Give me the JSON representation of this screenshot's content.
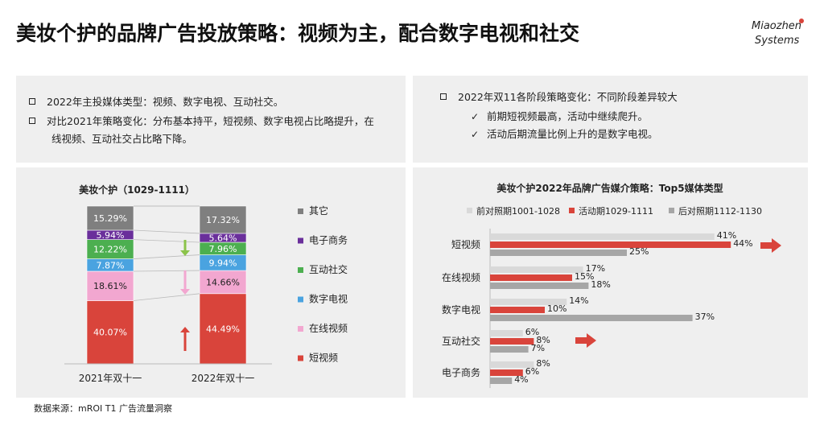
{
  "page": {
    "title": "美妆个护的品牌广告投放策略：视频为主，配合数字电视和社交",
    "logo_line1": "Miaozhen",
    "logo_line2": "Systems",
    "footer": "数据来源：mROI T1 广告流量洞察"
  },
  "left_notes": [
    "2022年主投媒体类型：视频、数字电视、互动社交。",
    "对比2021年策略变化：分布基本持平，短视频、数字电视占比略提升，在",
    "线视频、互动社交占比略下降。"
  ],
  "right_notes": {
    "header": "2022年双11各阶段策略变化：不同阶段差异较大",
    "items": [
      "前期短视频最高，活动中继续爬升。",
      "活动后期流量比例上升的是数字电视。"
    ]
  },
  "colors": {
    "short_video": "#d9443b",
    "online_video": "#f2a7d0",
    "digital_tv": "#4aa3e0",
    "social": "#4caf50",
    "ecommerce": "#6a2f9b",
    "other": "#7f7f7f",
    "pre": "#d9d9d9",
    "during": "#d9443b",
    "post": "#a6a6a6",
    "down_arrow_green": "#8bc34a",
    "down_arrow_pink": "#f2a7d0",
    "up_arrow": "#d9443b"
  },
  "chart_data": [
    {
      "type": "bar",
      "stacked": true,
      "title": "美妆个护（1029-1111）",
      "categories": [
        "2021年双十一",
        "2022年双十一"
      ],
      "series": [
        {
          "name": "短视频",
          "values": [
            40.07,
            44.49
          ],
          "labels": [
            "40.07%",
            "44.49%"
          ]
        },
        {
          "name": "在线视频",
          "values": [
            18.61,
            14.66
          ],
          "labels": [
            "18.61%",
            "14.66%"
          ]
        },
        {
          "name": "数字电视",
          "values": [
            7.87,
            9.94
          ],
          "labels": [
            "7.87%",
            "9.94%"
          ]
        },
        {
          "name": "互动社交",
          "values": [
            12.22,
            7.96
          ],
          "labels": [
            "12.22%",
            "7.96%"
          ]
        },
        {
          "name": "电子商务",
          "values": [
            5.94,
            5.64
          ],
          "labels": [
            "5.94%",
            "5.64%"
          ]
        },
        {
          "name": "其它",
          "values": [
            15.29,
            17.32
          ],
          "labels": [
            "15.29%",
            "17.32%"
          ]
        }
      ],
      "legend": [
        "其它",
        "电子商务",
        "互动社交",
        "数字电视",
        "在线视频",
        "短视频"
      ],
      "ylim": [
        0,
        100
      ],
      "legend_position": "right"
    },
    {
      "type": "bar",
      "orientation": "horizontal",
      "title": "美妆个护2022年品牌广告媒介策略：Top5媒体类型",
      "categories": [
        "短视频",
        "在线视频",
        "数字电视",
        "互动社交",
        "电子商务"
      ],
      "series": [
        {
          "name": "前对照期1001-1028",
          "values": [
            41,
            17,
            14,
            6,
            8
          ],
          "labels": [
            "41%",
            "17%",
            "14%",
            "6%",
            "8%"
          ]
        },
        {
          "name": "活动期1029-1111",
          "values": [
            44,
            15,
            10,
            8,
            6
          ],
          "labels": [
            "44%",
            "15%",
            "10%",
            "8%",
            "6%"
          ]
        },
        {
          "name": "后对照期1112-1130",
          "values": [
            25,
            18,
            37,
            7,
            4
          ],
          "labels": [
            "25%",
            "18%",
            "37%",
            "7%",
            "4%"
          ]
        }
      ],
      "highlight_arrows": [
        "短视频",
        "互动社交"
      ],
      "xlim": [
        0,
        50
      ],
      "legend_position": "top"
    }
  ]
}
